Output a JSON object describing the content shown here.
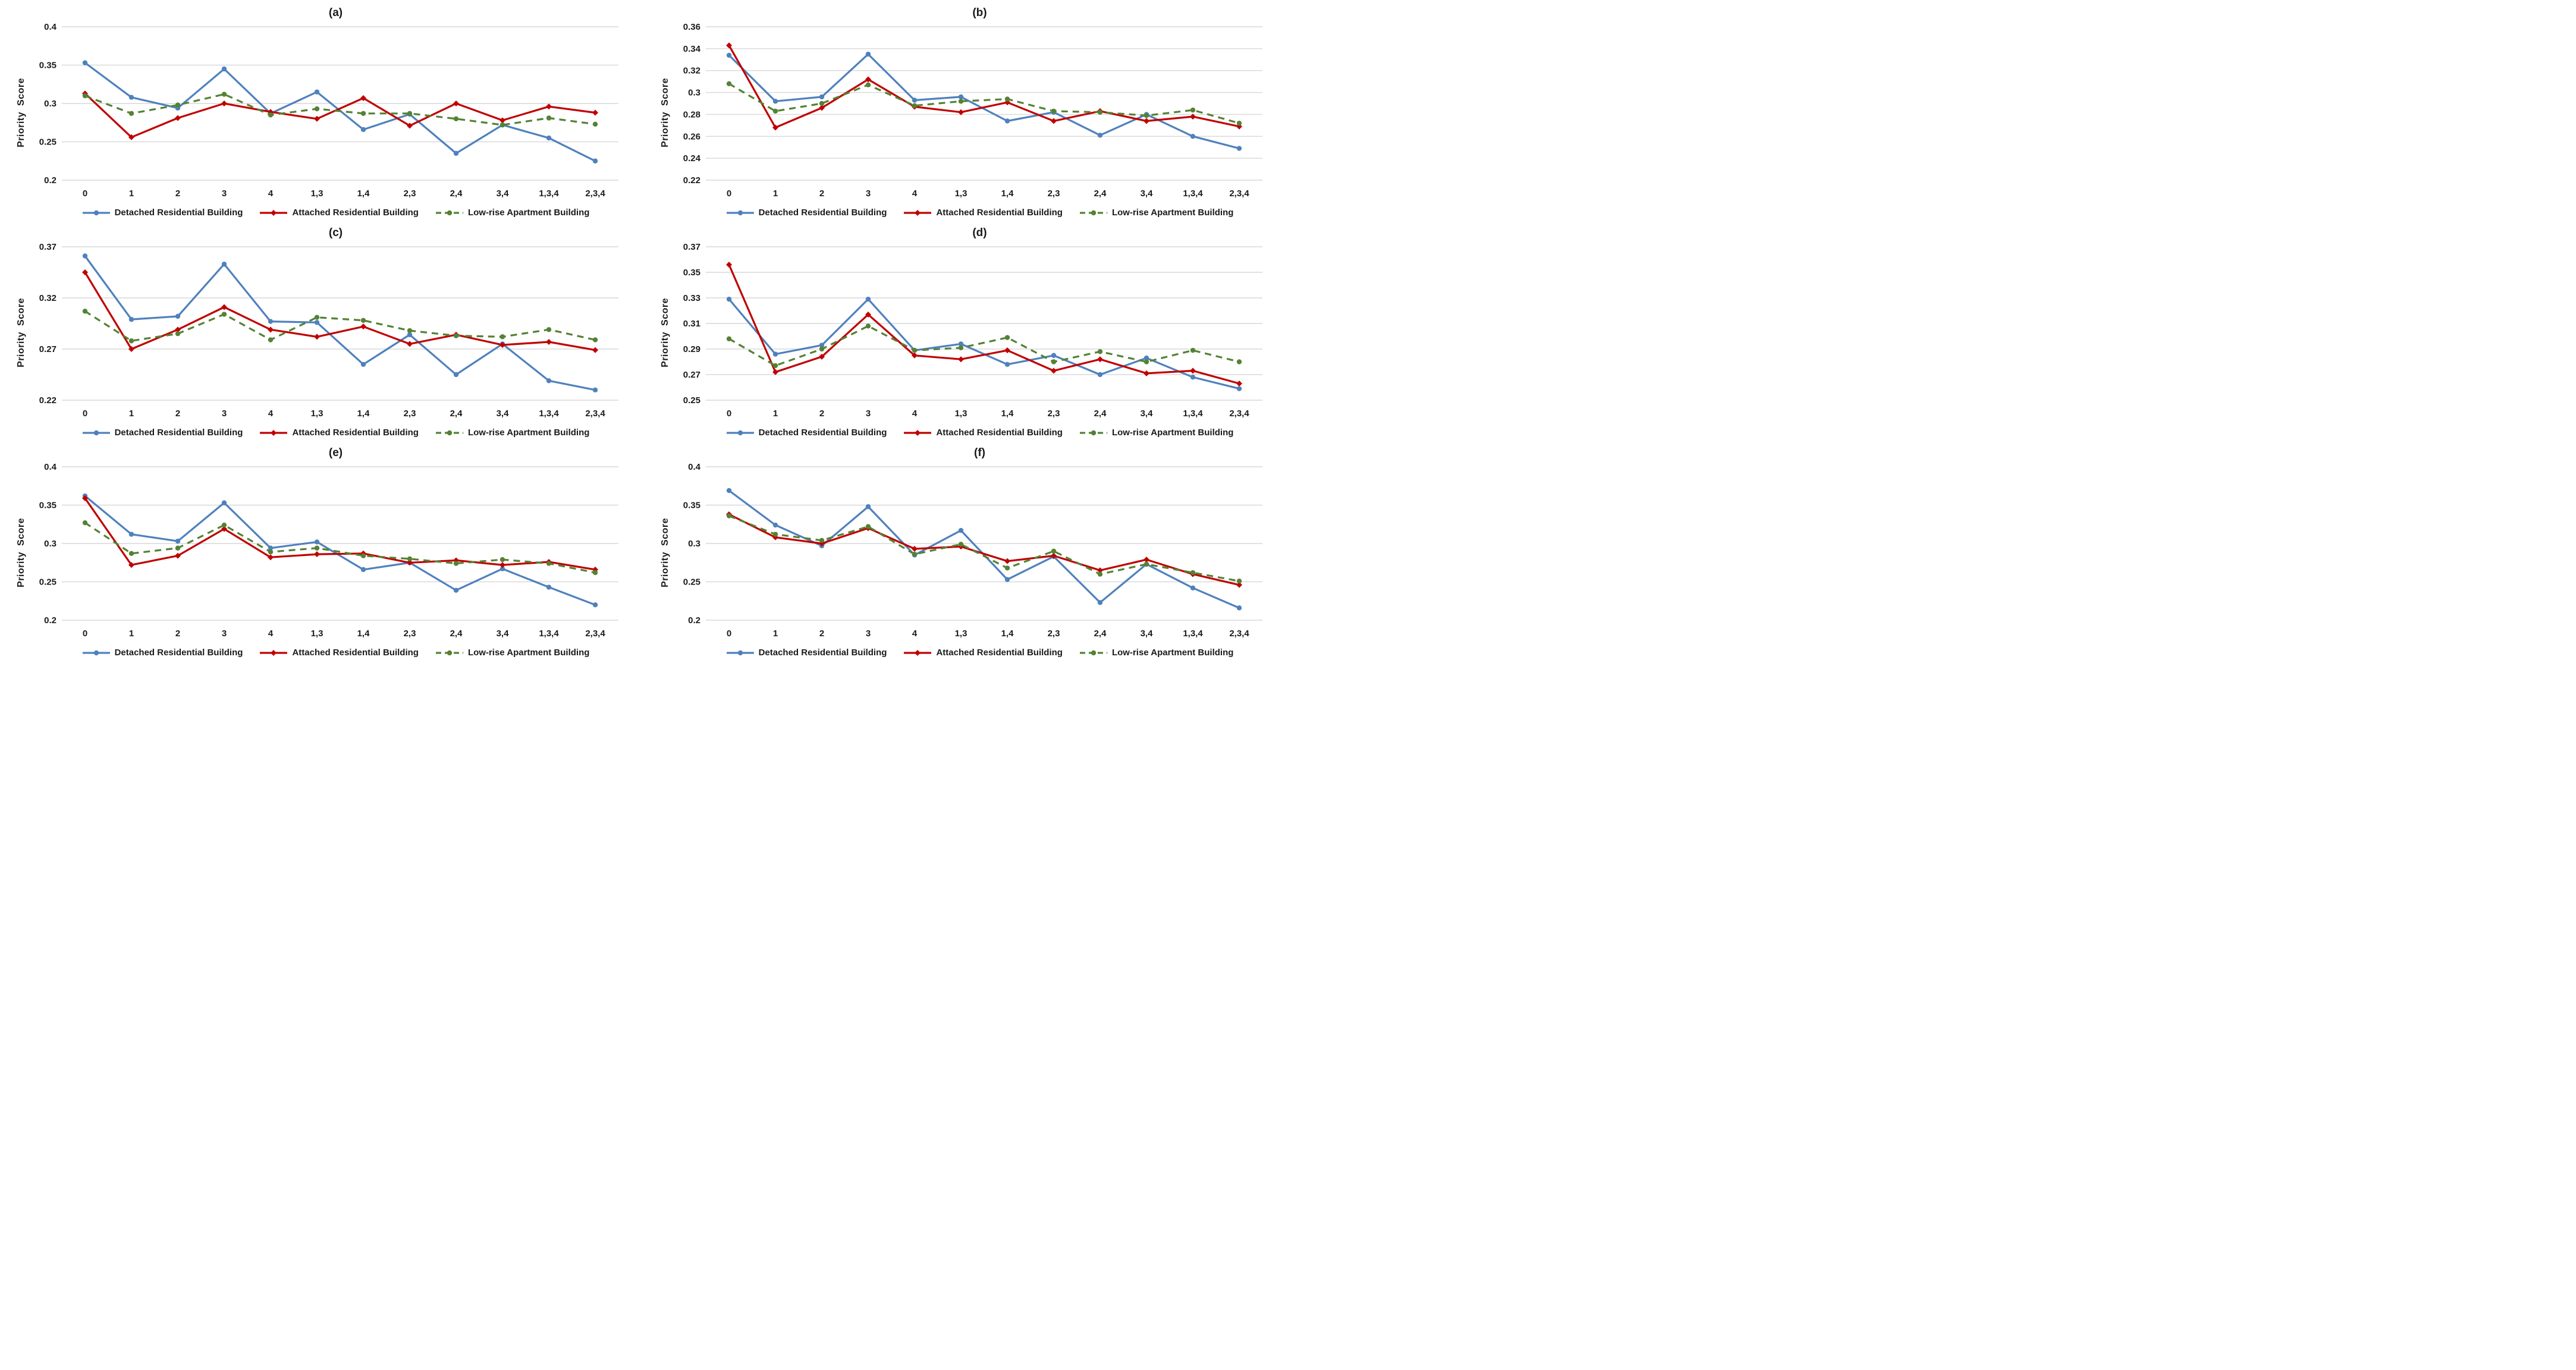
{
  "figure": {
    "background": "#ffffff",
    "grid_color": "#d9d9d9",
    "text_color": "#1a1a1a"
  },
  "categories": [
    "0",
    "1",
    "2",
    "3",
    "4",
    "1,3",
    "1,4",
    "2,3",
    "2,4",
    "3,4",
    "1,3,4",
    "2,3,4"
  ],
  "legend": [
    {
      "label": "Detached Residential Building",
      "color": "#4F81BD",
      "dash": "solid",
      "marker": "circle",
      "icon": "blue-line-marker-sample"
    },
    {
      "label": "Attached Residential Building",
      "color": "#C00000",
      "dash": "solid",
      "marker": "diamond",
      "icon": "red-line-marker-sample"
    },
    {
      "label": "Low-rise Apartment Building",
      "color": "#548235",
      "dash": "dashed",
      "marker": "circle",
      "icon": "green-dashed-line-marker-sample"
    }
  ],
  "chart_data": [
    {
      "type": "line",
      "title": "(a)",
      "ylabel": "Priority  Score",
      "xlabel": "",
      "ylim": [
        0.2,
        0.4
      ],
      "yticks": [
        "0.4",
        "0.35",
        "0.3",
        "0.25",
        "0.2"
      ],
      "grid": true,
      "legend_position": "bottom",
      "series": [
        {
          "name": "Detached Residential Building",
          "values": [
            0.353,
            0.308,
            0.294,
            0.345,
            0.287,
            0.315,
            0.266,
            0.286,
            0.235,
            0.272,
            0.255,
            0.225
          ]
        },
        {
          "name": "Attached Residential Building",
          "values": [
            0.313,
            0.256,
            0.281,
            0.3,
            0.289,
            0.28,
            0.307,
            0.271,
            0.3,
            0.278,
            0.296,
            0.288
          ]
        },
        {
          "name": "Low-rise Apartment Building",
          "values": [
            0.31,
            0.287,
            0.298,
            0.312,
            0.285,
            0.293,
            0.287,
            0.287,
            0.28,
            0.272,
            0.281,
            0.273
          ]
        }
      ]
    },
    {
      "type": "line",
      "title": "(b)",
      "ylabel": "Priority  Score",
      "xlabel": "",
      "ylim": [
        0.22,
        0.36
      ],
      "yticks": [
        "0.36",
        "0.34",
        "0.32",
        "0.3",
        "0.28",
        "0.26",
        "0.24",
        "0.22"
      ],
      "grid": true,
      "legend_position": "bottom",
      "series": [
        {
          "name": "Detached Residential Building",
          "values": [
            0.334,
            0.292,
            0.296,
            0.335,
            0.293,
            0.296,
            0.274,
            0.282,
            0.261,
            0.28,
            0.26,
            0.249
          ]
        },
        {
          "name": "Attached Residential Building",
          "values": [
            0.343,
            0.268,
            0.286,
            0.312,
            0.287,
            0.282,
            0.291,
            0.274,
            0.283,
            0.274,
            0.278,
            0.269
          ]
        },
        {
          "name": "Low-rise Apartment Building",
          "values": [
            0.308,
            0.283,
            0.29,
            0.307,
            0.288,
            0.292,
            0.294,
            0.283,
            0.282,
            0.279,
            0.284,
            0.272
          ]
        }
      ]
    },
    {
      "type": "line",
      "title": "(c)",
      "ylabel": "Priority  Score",
      "xlabel": "",
      "ylim": [
        0.22,
        0.37
      ],
      "yticks": [
        "0.37",
        "0.32",
        "0.27",
        "0.22"
      ],
      "grid": true,
      "legend_position": "bottom",
      "series": [
        {
          "name": "Detached Residential Building",
          "values": [
            0.361,
            0.299,
            0.302,
            0.353,
            0.297,
            0.296,
            0.255,
            0.284,
            0.245,
            0.275,
            0.239,
            0.23
          ]
        },
        {
          "name": "Attached Residential Building",
          "values": [
            0.345,
            0.27,
            0.289,
            0.311,
            0.289,
            0.282,
            0.292,
            0.275,
            0.284,
            0.274,
            0.277,
            0.269
          ]
        },
        {
          "name": "Low-rise Apartment Building",
          "values": [
            0.307,
            0.278,
            0.285,
            0.304,
            0.279,
            0.301,
            0.298,
            0.288,
            0.283,
            0.282,
            0.289,
            0.279
          ]
        }
      ]
    },
    {
      "type": "line",
      "title": "(d)",
      "ylabel": "Priority  Score",
      "xlabel": "",
      "ylim": [
        0.25,
        0.37
      ],
      "yticks": [
        "0.37",
        "0.35",
        "0.33",
        "0.31",
        "0.29",
        "0.27",
        "0.25"
      ],
      "grid": true,
      "legend_position": "bottom",
      "series": [
        {
          "name": "Detached Residential Building",
          "values": [
            0.329,
            0.286,
            0.293,
            0.329,
            0.289,
            0.294,
            0.278,
            0.285,
            0.27,
            0.283,
            0.268,
            0.259
          ]
        },
        {
          "name": "Attached Residential Building",
          "values": [
            0.356,
            0.272,
            0.284,
            0.317,
            0.285,
            0.282,
            0.289,
            0.273,
            0.282,
            0.271,
            0.273,
            0.263
          ]
        },
        {
          "name": "Low-rise Apartment Building",
          "values": [
            0.298,
            0.277,
            0.29,
            0.308,
            0.289,
            0.291,
            0.299,
            0.28,
            0.288,
            0.28,
            0.289,
            0.28
          ]
        }
      ]
    },
    {
      "type": "line",
      "title": "(e)",
      "ylabel": "Priority  Score",
      "xlabel": "",
      "ylim": [
        0.2,
        0.4
      ],
      "yticks": [
        "0.4",
        "0.35",
        "0.3",
        "0.25",
        "0.2"
      ],
      "grid": true,
      "legend_position": "bottom",
      "series": [
        {
          "name": "Detached Residential Building",
          "values": [
            0.362,
            0.312,
            0.303,
            0.353,
            0.294,
            0.302,
            0.266,
            0.275,
            0.239,
            0.267,
            0.243,
            0.22
          ]
        },
        {
          "name": "Attached Residential Building",
          "values": [
            0.359,
            0.272,
            0.284,
            0.319,
            0.282,
            0.286,
            0.287,
            0.275,
            0.278,
            0.272,
            0.276,
            0.266
          ]
        },
        {
          "name": "Low-rise Apartment Building",
          "values": [
            0.327,
            0.287,
            0.294,
            0.324,
            0.289,
            0.294,
            0.284,
            0.28,
            0.274,
            0.279,
            0.274,
            0.262
          ]
        }
      ]
    },
    {
      "type": "line",
      "title": "(f)",
      "ylabel": "Priority  Score",
      "xlabel": "",
      "ylim": [
        0.2,
        0.4
      ],
      "yticks": [
        "0.4",
        "0.35",
        "0.3",
        "0.25",
        "0.2"
      ],
      "grid": true,
      "legend_position": "bottom",
      "series": [
        {
          "name": "Detached Residential Building",
          "values": [
            0.369,
            0.324,
            0.297,
            0.348,
            0.285,
            0.317,
            0.253,
            0.283,
            0.223,
            0.273,
            0.242,
            0.216
          ]
        },
        {
          "name": "Attached Residential Building",
          "values": [
            0.338,
            0.308,
            0.3,
            0.32,
            0.293,
            0.296,
            0.277,
            0.284,
            0.265,
            0.279,
            0.26,
            0.246
          ]
        },
        {
          "name": "Low-rise Apartment Building",
          "values": [
            0.336,
            0.312,
            0.304,
            0.322,
            0.286,
            0.299,
            0.268,
            0.29,
            0.26,
            0.273,
            0.262,
            0.251
          ]
        }
      ]
    }
  ]
}
